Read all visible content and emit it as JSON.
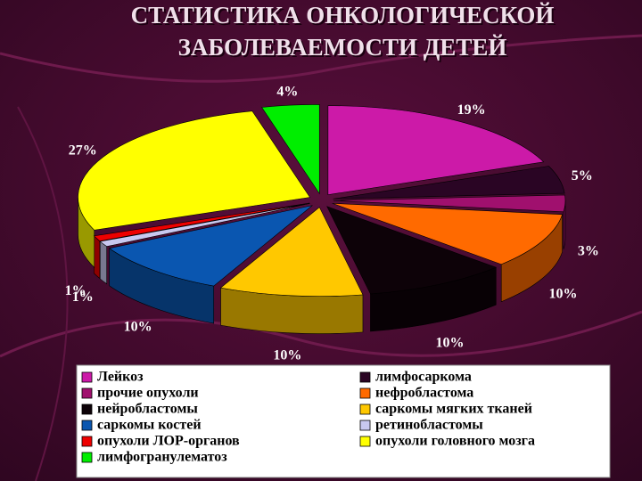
{
  "chart_data": {
    "type": "pie",
    "title_lines": [
      "СТАТИСТИКА ОНКОЛОГИЧЕСКОЙ",
      "ЗАБОЛЕВАЕМОСТИ  ДЕТЕЙ"
    ],
    "categories": [
      "Лейкоз",
      "лимфосаркома",
      "прочие опухоли",
      "нефробластома",
      "нейробластомы",
      "саркомы мягких тканей",
      "саркомы костей",
      "ретинобластомы",
      "опухоли ЛОР-органов",
      "опухоли головного мозга",
      "лимфогранулематоз"
    ],
    "values": [
      19,
      5,
      3,
      10,
      10,
      10,
      10,
      1,
      1,
      27,
      4
    ],
    "value_labels": [
      "19%",
      "5%",
      "3%",
      "10%",
      "10%",
      "10%",
      "10%",
      "1%",
      "1%",
      "27%",
      "4%"
    ],
    "colors": [
      "#cc1aa8",
      "#2a0524",
      "#a0106e",
      "#ff6a00",
      "#0d0208",
      "#ffc800",
      "#0a56b0",
      "#c8c8f0",
      "#ee0000",
      "#ffff00",
      "#00ee00"
    ],
    "legend": "bottom"
  }
}
